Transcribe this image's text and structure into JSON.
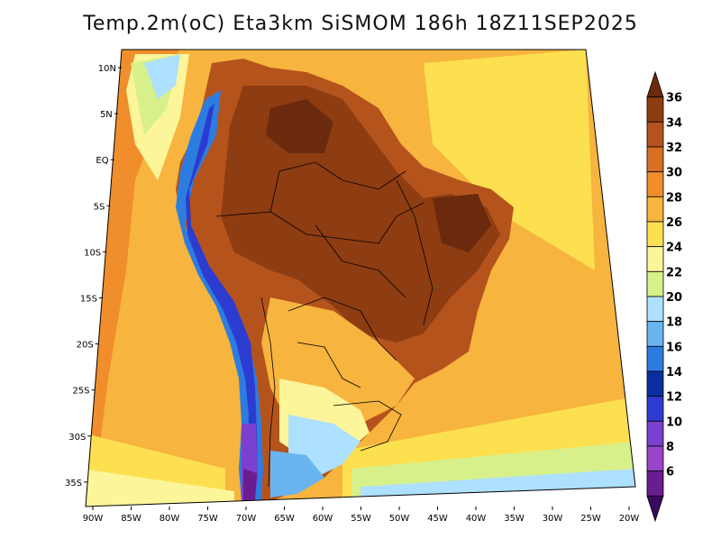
{
  "title": "Temp.2m(oC) Eta3km SiSMOM 186h 18Z11SEP2025",
  "lat_labels": [
    "10N",
    "5N",
    "EQ",
    "5S",
    "10S",
    "15S",
    "20S",
    "25S",
    "30S",
    "35S"
  ],
  "lon_labels": [
    "90W",
    "85W",
    "80W",
    "75W",
    "70W",
    "65W",
    "60W",
    "55W",
    "50W",
    "45W",
    "40W",
    "35W",
    "30W",
    "25W",
    "20W"
  ],
  "colorbar": {
    "labels": [
      "36",
      "34",
      "32",
      "30",
      "28",
      "26",
      "24",
      "22",
      "20",
      "18",
      "16",
      "14",
      "12",
      "10",
      "8",
      "6"
    ],
    "colors": [
      "#6b2a0e",
      "#8e3c12",
      "#b5531c",
      "#d86f22",
      "#f08e2c",
      "#f7b43e",
      "#fce050",
      "#fcf59a",
      "#d8f08a",
      "#aee0ff",
      "#6ab4f0",
      "#2d7de0",
      "#0a2fa0",
      "#2c3cd0",
      "#7a40d0",
      "#9a44c8",
      "#6a1d90",
      "#3a0a60"
    ]
  },
  "palette": {
    "ocean_warm": "#f7b43e",
    "ocean_mid": "#fce050",
    "ocean_cool": "#d8f08a",
    "land_hot": "#b5531c",
    "land_very_hot": "#8e3c12",
    "andes": "#2c3cd0",
    "border": "#000000"
  }
}
